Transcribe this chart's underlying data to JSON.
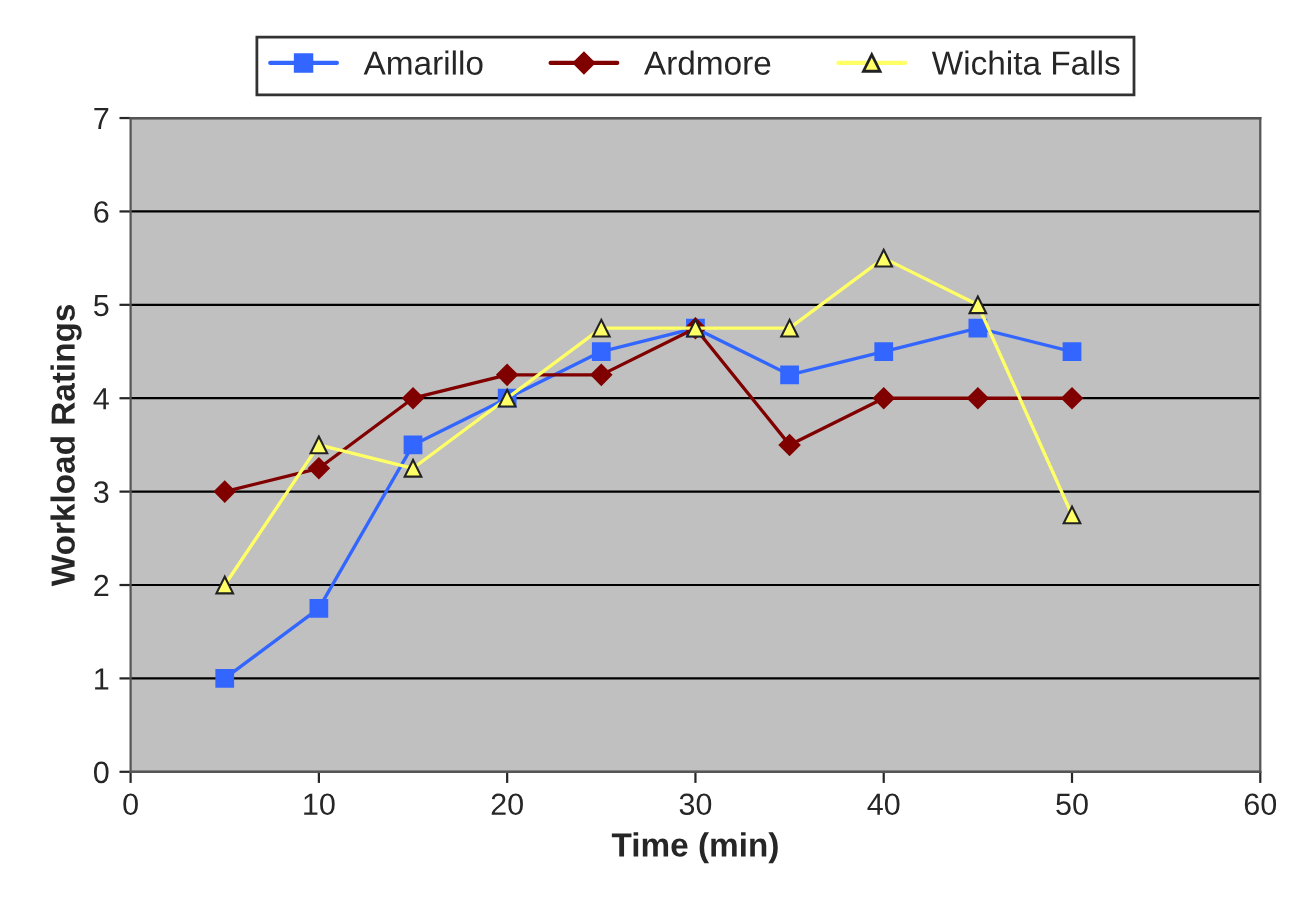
{
  "chart_data": {
    "type": "line",
    "xlabel": "Time (min)",
    "ylabel": "Workload Ratings",
    "x": [
      5,
      10,
      15,
      20,
      25,
      30,
      35,
      40,
      45,
      50
    ],
    "series": [
      {
        "name": "Amarillo",
        "color": "#3366ff",
        "marker": "square",
        "values": [
          1,
          1.75,
          3.5,
          4,
          4.5,
          4.75,
          4.25,
          4.5,
          4.75,
          4.5
        ]
      },
      {
        "name": "Ardmore",
        "color": "#800000",
        "marker": "diamond",
        "values": [
          3,
          3.25,
          4,
          4.25,
          4.25,
          4.75,
          3.5,
          4,
          4,
          4
        ]
      },
      {
        "name": "Wichita Falls",
        "color": "#ffff66",
        "marker": "triangle",
        "values": [
          2,
          3.5,
          3.25,
          4,
          4.75,
          4.75,
          4.75,
          5.5,
          5,
          2.75
        ]
      }
    ],
    "xlim": [
      0,
      60
    ],
    "xticks": [
      0,
      10,
      20,
      30,
      40,
      50,
      60
    ],
    "ylim": [
      0,
      7
    ],
    "yticks": [
      0,
      1,
      2,
      3,
      4,
      5,
      6,
      7
    ],
    "grid": "y",
    "legend": "top",
    "line_style": "solid"
  }
}
